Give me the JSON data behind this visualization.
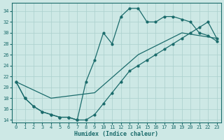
{
  "xlabel": "Humidex (Indice chaleur)",
  "background_color": "#cde8e5",
  "grid_color": "#aacfcc",
  "line_color": "#1a6b6b",
  "xlim": [
    -0.5,
    23.5
  ],
  "ylim": [
    13.5,
    35.5
  ],
  "yticks": [
    14,
    16,
    18,
    20,
    22,
    24,
    26,
    28,
    30,
    32,
    34
  ],
  "xticks": [
    0,
    1,
    2,
    3,
    4,
    5,
    6,
    7,
    8,
    9,
    10,
    11,
    12,
    13,
    14,
    15,
    16,
    17,
    18,
    19,
    20,
    21,
    22,
    23
  ],
  "line1_x": [
    0,
    1,
    2,
    3,
    4,
    5,
    6,
    7,
    8,
    9,
    10,
    11,
    12,
    13,
    14,
    15,
    16,
    17,
    18,
    19,
    20,
    21,
    22,
    23
  ],
  "line1_y": [
    21,
    18,
    16.5,
    15.5,
    15,
    14.5,
    14.5,
    14,
    21,
    25,
    30,
    28,
    33,
    34.5,
    34.5,
    32,
    32,
    33,
    33,
    32.5,
    32,
    30,
    29.5,
    28.5
  ],
  "line2_x": [
    0,
    4,
    9,
    14,
    19,
    23
  ],
  "line2_y": [
    21,
    18,
    19,
    26,
    30,
    29
  ],
  "line3_x": [
    0,
    1,
    2,
    3,
    4,
    5,
    6,
    7,
    8,
    9,
    10,
    11,
    12,
    13,
    14,
    15,
    16,
    17,
    18,
    19,
    20,
    21,
    22,
    23
  ],
  "line3_y": [
    21,
    18,
    16.5,
    15.5,
    15,
    14.5,
    14.5,
    14,
    14,
    15,
    17,
    19,
    21,
    23,
    24,
    25,
    26,
    27,
    28,
    29,
    30,
    31,
    32,
    29
  ]
}
